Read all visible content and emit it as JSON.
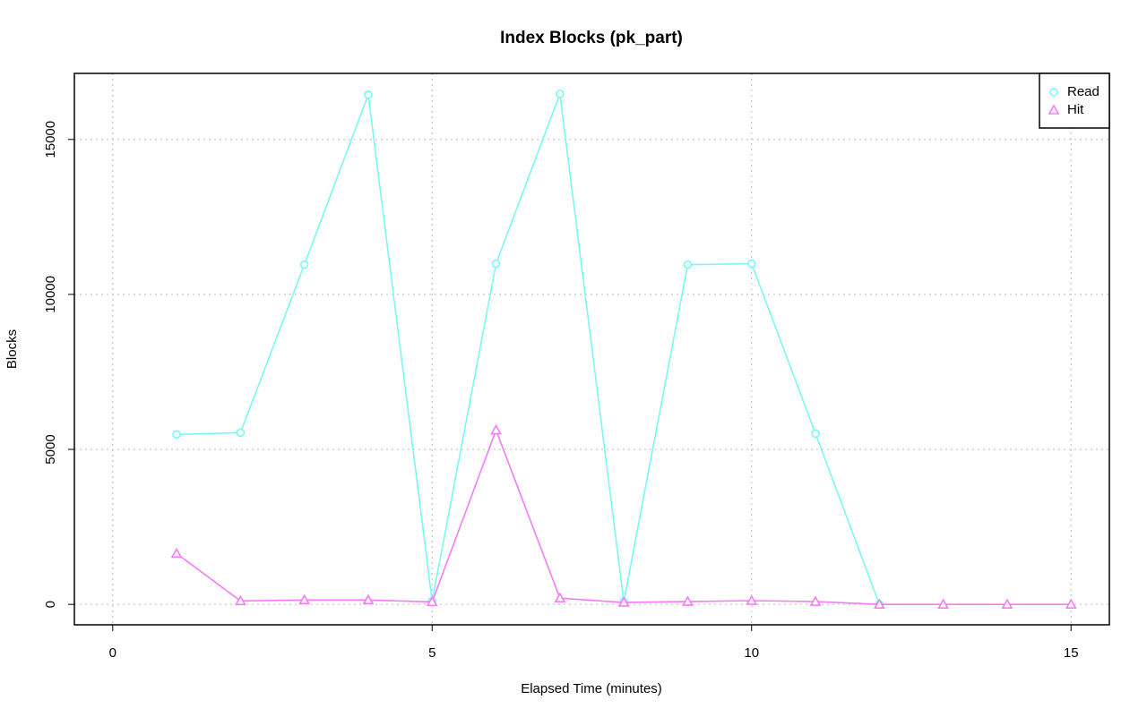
{
  "chart_data": {
    "type": "line",
    "title": "Index Blocks (pk_part)",
    "x_label": "Elapsed Time (minutes)",
    "y_label": "Blocks",
    "x": [
      1,
      2,
      3,
      4,
      5,
      6,
      7,
      8,
      9,
      10,
      11,
      12,
      13,
      14,
      15
    ],
    "series": [
      {
        "name": "Read",
        "color": "#7af7f7",
        "marker": "circle",
        "values": [
          5480,
          5540,
          10960,
          16440,
          100,
          10990,
          16470,
          90,
          10960,
          10990,
          5510,
          0,
          null,
          null,
          null
        ]
      },
      {
        "name": "Hit",
        "color": "#f77af7",
        "marker": "triangle",
        "values": [
          1640,
          110,
          140,
          140,
          80,
          5620,
          200,
          60,
          90,
          120,
          90,
          0,
          0,
          0,
          0
        ]
      }
    ],
    "xlim": [
      -0.6,
      15.6
    ],
    "ylim": [
      -660,
      17130
    ],
    "xticks": [
      0,
      5,
      10,
      15
    ],
    "yticks": [
      0,
      5000,
      10000,
      15000
    ],
    "grid": true,
    "legend": "top-right"
  }
}
